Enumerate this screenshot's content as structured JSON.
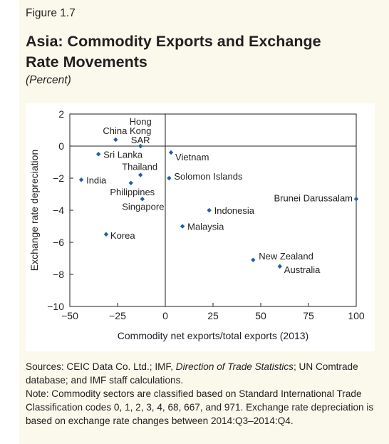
{
  "figure": {
    "label": "Figure 1.7",
    "title_line1": "Asia: Commodity Exports and Exchange",
    "title_line2": "Rate Movements",
    "subtitle": "(Percent)"
  },
  "chart_data": {
    "type": "scatter",
    "xlabel": "Commodity net exports/total exports (2013)",
    "ylabel": "Exchange rate depreciation",
    "xlim": [
      -50,
      100
    ],
    "ylim": [
      -10,
      2
    ],
    "x_ticks": [
      -50,
      -25,
      0,
      25,
      50,
      75,
      100
    ],
    "y_ticks": [
      2,
      0,
      -2,
      -4,
      -6,
      -8,
      -10
    ],
    "x_tick_labels": [
      "−50",
      "−25",
      "0",
      "25",
      "50",
      "75",
      "100"
    ],
    "y_tick_labels": [
      "2",
      "0",
      "−2",
      "−4",
      "−6",
      "−8",
      "−10"
    ],
    "marker_color": "#1f5fa8",
    "points": [
      {
        "label": "China",
        "x": -26,
        "y": 0.4
      },
      {
        "label": "Hong Kong SAR",
        "label_lines": [
          "Hong",
          "Kong",
          "SAR"
        ],
        "x": -13,
        "y": 0
      },
      {
        "label": "Sri Lanka",
        "x": -35,
        "y": -0.5
      },
      {
        "label": "India",
        "x": -44,
        "y": -2.1
      },
      {
        "label": "Thailand",
        "x": -13,
        "y": -1.8
      },
      {
        "label": "Philippines",
        "x": -18,
        "y": -2.3
      },
      {
        "label": "Singapore",
        "x": -12,
        "y": -3.3
      },
      {
        "label": "Korea",
        "x": -31,
        "y": -5.5
      },
      {
        "label": "Vietnam",
        "x": 3,
        "y": -0.4
      },
      {
        "label": "Solomon Islands",
        "x": 2,
        "y": -2
      },
      {
        "label": "Indonesia",
        "x": 23,
        "y": -4
      },
      {
        "label": "Malaysia",
        "x": 9,
        "y": -5
      },
      {
        "label": "Brunei Darussalam",
        "x": 100,
        "y": -3.3
      },
      {
        "label": "New Zealand",
        "x": 46,
        "y": -7.1
      },
      {
        "label": "Australia",
        "x": 60,
        "y": -7.5
      }
    ]
  },
  "notes": {
    "sources_prefix": "Sources: CEIC Data Co. Ltd.; IMF, ",
    "sources_italic": "Direction of Trade Statistics",
    "sources_suffix": "; UN Comtrade database; and IMF staff calculations.",
    "note": "Note: Commodity sectors are classified based on Standard International Trade Classification codes 0, 1, 2, 3, 4, 68, 667, and 971. Exchange rate depreciation is based on exchange rate changes between 2014:Q3–2014:Q4."
  }
}
